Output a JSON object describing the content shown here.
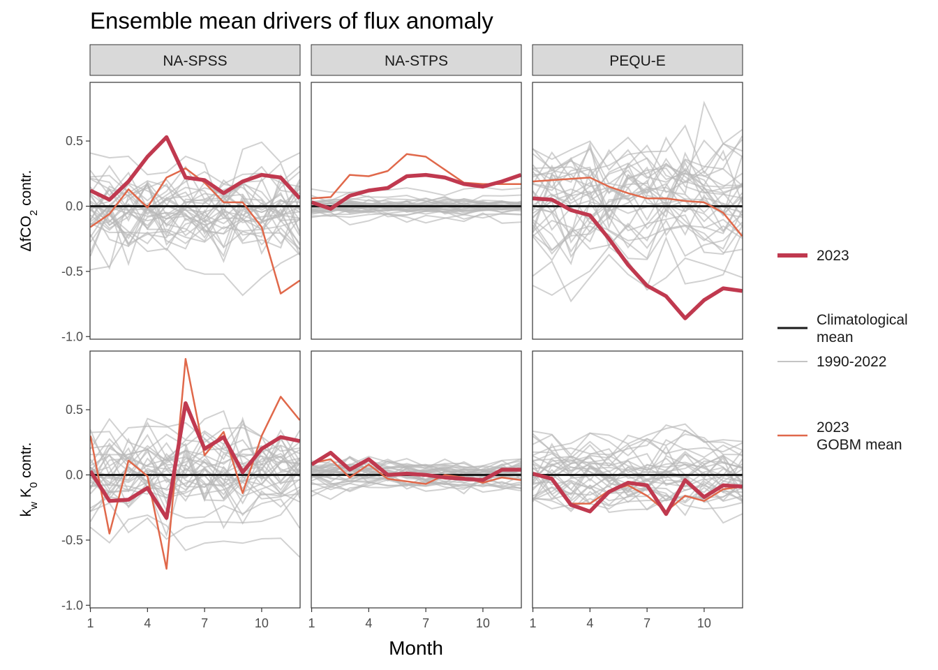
{
  "chart_data": {
    "type": "line",
    "title": "Ensemble mean drivers of flux anomaly",
    "xlabel": "Month",
    "x": [
      1,
      2,
      3,
      4,
      5,
      6,
      7,
      8,
      9,
      10,
      11,
      12
    ],
    "x_ticks": [
      1,
      4,
      7,
      10
    ],
    "x_tick_labels": [
      "1",
      "4",
      "7",
      "10"
    ],
    "y_ticks": [
      -1.0,
      -0.5,
      0.0,
      0.5
    ],
    "y_tick_labels": [
      "-1.0",
      "-0.5",
      "0.0",
      "0.5"
    ],
    "ylim": [
      -1.02,
      0.95
    ],
    "columns": [
      "NA-SPSS",
      "NA-STPS",
      "PEQU-E"
    ],
    "rows": [
      {
        "ylabel_main": "ΔfCO",
        "ylabel_sub": "2",
        "ylabel_rest": " contr."
      },
      {
        "ylabel_main": "k",
        "ylabel_sub": "w",
        "ylabel_mid": " K",
        "ylabel_sub2": "0",
        "ylabel_rest": " contr."
      }
    ],
    "legend": {
      "position": "right",
      "entries": [
        {
          "key": "2023",
          "label": "2023",
          "color": "#c0394f"
        },
        {
          "key": "clim",
          "label": "Climatological\nmean",
          "color": "#1a1a1a"
        },
        {
          "key": "hist",
          "label": "1990-2022",
          "color": "#c4c4c4"
        },
        {
          "key": "gobm",
          "label": "2023\nGOBM mean",
          "color": "#e0684a"
        }
      ]
    },
    "colors": {
      "y2023": "#c0394f",
      "gobm": "#e0684a",
      "clim": "#1a1a1a",
      "hist": "#b9b9b9",
      "strip": "#d9d9d9"
    },
    "panels": [
      {
        "row": 0,
        "col": 0,
        "facet": "NA-SPSS",
        "y2023": [
          0.12,
          0.05,
          0.19,
          0.38,
          0.53,
          0.22,
          0.2,
          0.1,
          0.19,
          0.24,
          0.22,
          0.06
        ],
        "gobm": [
          -0.16,
          -0.06,
          0.13,
          -0.01,
          0.22,
          0.29,
          0.18,
          0.03,
          0.03,
          -0.16,
          -0.67,
          -0.57
        ],
        "hist_spread": 0.22
      },
      {
        "row": 0,
        "col": 1,
        "facet": "NA-STPS",
        "y2023": [
          0.03,
          -0.02,
          0.08,
          0.12,
          0.14,
          0.23,
          0.24,
          0.22,
          0.17,
          0.15,
          0.19,
          0.24
        ],
        "gobm": [
          0.06,
          0.07,
          0.24,
          0.23,
          0.27,
          0.4,
          0.38,
          0.28,
          0.18,
          0.17,
          0.17,
          0.17
        ],
        "hist_spread": 0.04
      },
      {
        "row": 0,
        "col": 2,
        "facet": "PEQU-E",
        "y2023": [
          0.06,
          0.05,
          -0.03,
          -0.07,
          -0.25,
          -0.45,
          -0.61,
          -0.69,
          -0.86,
          -0.72,
          -0.63,
          -0.65
        ],
        "gobm": [
          0.19,
          0.2,
          0.21,
          0.22,
          0.15,
          0.1,
          0.06,
          0.06,
          0.04,
          0.03,
          -0.05,
          -0.23
        ],
        "hist_spread": 0.25
      },
      {
        "row": 1,
        "col": 0,
        "facet": "NA-SPSS",
        "y2023": [
          0.03,
          -0.2,
          -0.19,
          -0.1,
          -0.33,
          0.55,
          0.2,
          0.29,
          0.02,
          0.2,
          0.29,
          0.26
        ],
        "gobm": [
          0.3,
          -0.45,
          0.11,
          -0.01,
          -0.72,
          0.89,
          0.15,
          0.33,
          -0.14,
          0.3,
          0.6,
          0.42
        ],
        "hist_spread": 0.22
      },
      {
        "row": 1,
        "col": 1,
        "facet": "NA-STPS",
        "y2023": [
          0.08,
          0.17,
          0.04,
          0.12,
          0.0,
          0.01,
          0.0,
          -0.02,
          -0.03,
          -0.04,
          0.04,
          0.04
        ],
        "gobm": [
          0.09,
          0.12,
          -0.02,
          0.08,
          -0.03,
          -0.05,
          -0.07,
          0.0,
          -0.02,
          -0.06,
          -0.02,
          -0.04
        ],
        "hist_spread": 0.06
      },
      {
        "row": 1,
        "col": 2,
        "facet": "PEQU-E",
        "y2023": [
          0.01,
          -0.03,
          -0.23,
          -0.28,
          -0.13,
          -0.06,
          -0.08,
          -0.3,
          -0.04,
          -0.17,
          -0.08,
          -0.09
        ],
        "gobm": [
          0.01,
          -0.02,
          -0.22,
          -0.22,
          -0.12,
          -0.08,
          -0.16,
          -0.28,
          -0.16,
          -0.2,
          -0.11,
          -0.09
        ],
        "hist_spread": 0.15
      }
    ]
  }
}
